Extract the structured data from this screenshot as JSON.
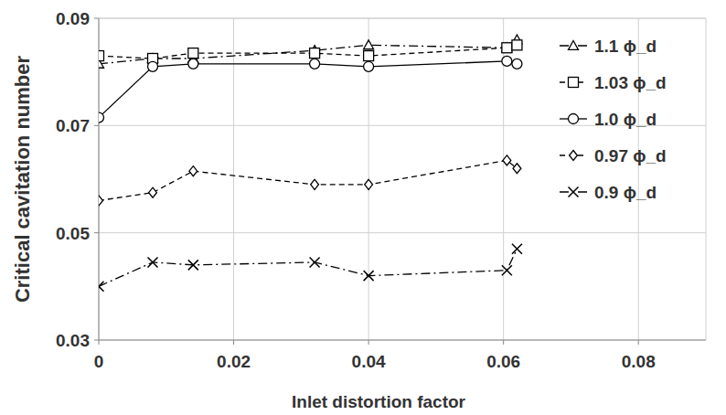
{
  "chart_data": {
    "type": "line",
    "x_label": "Inlet distortion factor",
    "y_label": "Critical cavitation number",
    "x": [
      0,
      0.008,
      0.014,
      0.032,
      0.04,
      0.0605,
      0.062
    ],
    "series": [
      {
        "name": "1.1 ϕ_d",
        "color": "#000000",
        "marker": "triangle",
        "line_style": "dashdot",
        "values": [
          0.0815,
          0.0825,
          0.0825,
          0.084,
          0.085,
          0.0845,
          0.086
        ]
      },
      {
        "name": "1.03 ϕ_d",
        "color": "#000000",
        "marker": "square",
        "line_style": "dashed",
        "values": [
          0.083,
          0.0825,
          0.0835,
          0.0835,
          0.083,
          0.0845,
          0.085
        ]
      },
      {
        "name": "1.0 ϕ_d",
        "color": "#000000",
        "marker": "circle",
        "line_style": "solid",
        "values": [
          0.0715,
          0.081,
          0.0815,
          0.0815,
          0.081,
          0.082,
          0.0815
        ]
      },
      {
        "name": "0.97 ϕ_d",
        "color": "#000000",
        "marker": "diamond",
        "line_style": "dashed",
        "values": [
          0.056,
          0.0575,
          0.0615,
          0.059,
          0.059,
          0.0635,
          0.062
        ]
      },
      {
        "name": "0.9 ϕ_d",
        "color": "#000000",
        "marker": "x",
        "line_style": "dashdot",
        "values": [
          0.04,
          0.0445,
          0.044,
          0.0445,
          0.042,
          0.043,
          0.047
        ]
      }
    ],
    "xlim": [
      0,
      0.09
    ],
    "xticks": [
      0,
      0.02,
      0.04,
      0.06,
      0.08
    ],
    "ylim": [
      0.03,
      0.09
    ],
    "yticks": [
      0.03,
      0.05,
      0.07,
      0.09
    ],
    "grid": true,
    "legend": "upper right"
  }
}
